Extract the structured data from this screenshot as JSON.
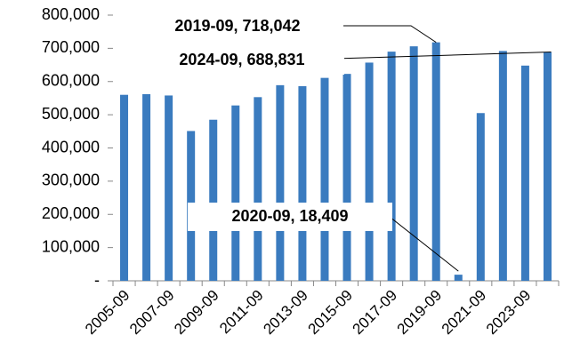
{
  "chart_data": {
    "type": "bar",
    "categories": [
      "2005-09",
      null,
      "2007-09",
      null,
      "2009-09",
      null,
      "2011-09",
      null,
      "2013-09",
      null,
      "2015-09",
      null,
      "2017-09",
      null,
      "2019-09",
      null,
      "2021-09",
      null,
      "2023-09",
      null
    ],
    "values": [
      560000,
      562000,
      558000,
      451000,
      485000,
      528000,
      553000,
      589000,
      586000,
      611000,
      623000,
      657000,
      690000,
      706000,
      718042,
      18409,
      505000,
      692000,
      648000,
      688831
    ],
    "color": "#3a7bbf",
    "ylim": [
      0,
      800000
    ],
    "yticks": [
      {
        "value": 0,
        "label": "-"
      },
      {
        "value": 100000,
        "label": "100,000"
      },
      {
        "value": 200000,
        "label": "200,000"
      },
      {
        "value": 300000,
        "label": "300,000"
      },
      {
        "value": 400000,
        "label": "400,000"
      },
      {
        "value": 500000,
        "label": "500,000"
      },
      {
        "value": 600000,
        "label": "600,000"
      },
      {
        "value": 700000,
        "label": "700,000"
      },
      {
        "value": 800000,
        "label": "800,000"
      }
    ],
    "annotations": [
      "2019-09, 718,042",
      "2024-09, 688,831",
      "2020-09, 18,409"
    ]
  }
}
